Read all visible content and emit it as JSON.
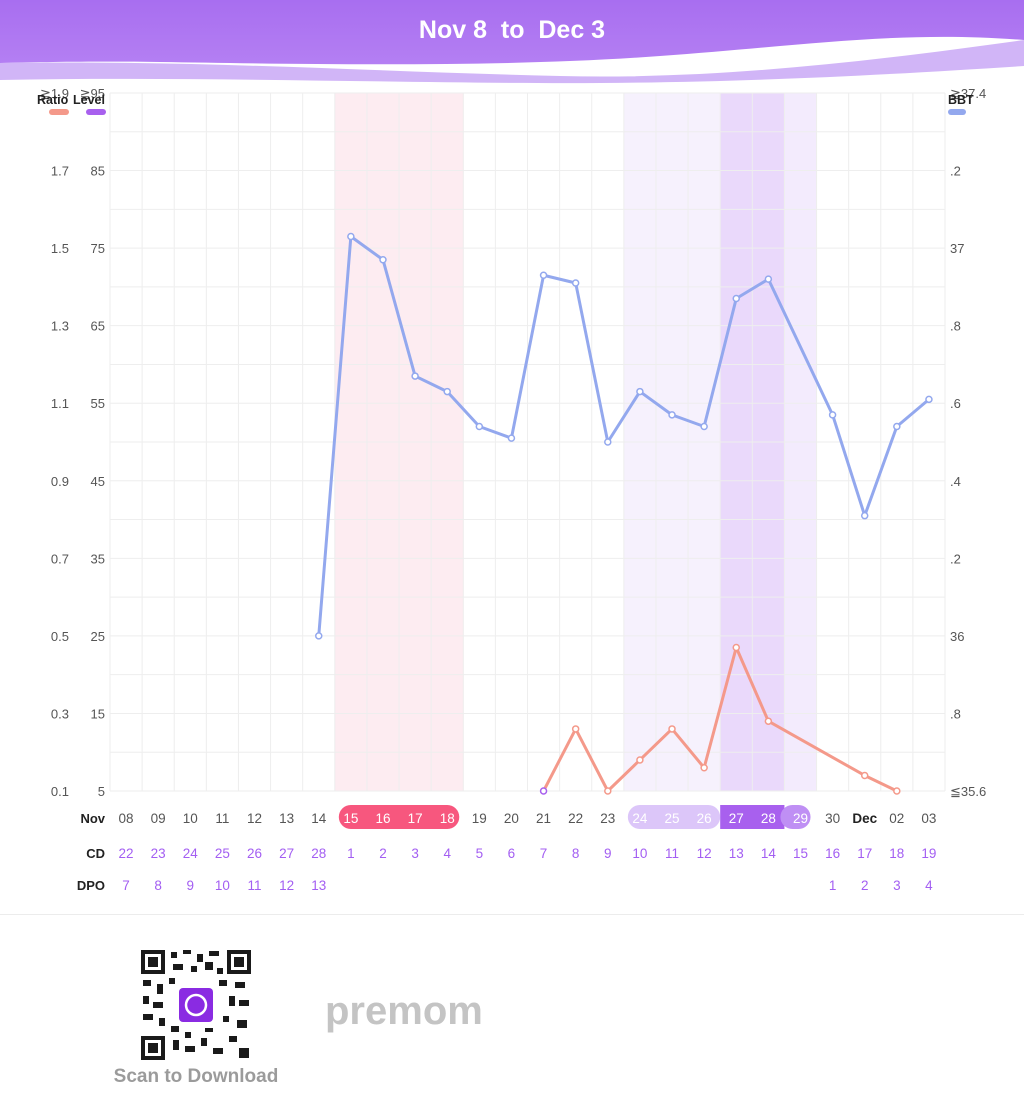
{
  "header": {
    "title": "Nov 8  to  Dec 3"
  },
  "footer": {
    "scan_label": "Scan to Download",
    "logo_text": "premom"
  },
  "colors": {
    "header_top": "#a86ef0",
    "bbt": "#93a8ee",
    "ratio": "#f4998a",
    "period": "#f7577e",
    "fertile_light": "#e3cef9",
    "fertile_dark": "#a860ee",
    "purple_text": "#a35ef2"
  },
  "chart_data": {
    "type": "line",
    "legend": {
      "ratio": "Ratio",
      "level": "Level",
      "bbt": "BBT"
    },
    "left_axis_ratio_ticks": [
      "≧1.9",
      "1.7",
      "1.5",
      "1.3",
      "1.1",
      "0.9",
      "0.7",
      "0.5",
      "0.3",
      "0.1"
    ],
    "left_axis_level_ticks": [
      "≧95",
      "85",
      "75",
      "65",
      "55",
      "45",
      "35",
      "25",
      "15",
      "5"
    ],
    "right_axis_bbt_ticks": [
      "≧37.4",
      ".2",
      "37",
      ".8",
      ".6",
      ".4",
      ".2",
      "36",
      ".8",
      "≦35.6"
    ],
    "ratio_range": [
      0.1,
      1.9
    ],
    "bbt_range": [
      35.6,
      37.4
    ],
    "row_labels": {
      "date": "Nov",
      "cd": "CD",
      "dpo": "DPO"
    },
    "dates": [
      "08",
      "09",
      "10",
      "11",
      "12",
      "13",
      "14",
      "15",
      "16",
      "17",
      "18",
      "19",
      "20",
      "21",
      "22",
      "23",
      "24",
      "25",
      "26",
      "27",
      "28",
      "29",
      "30",
      "Dec",
      "02",
      "03"
    ],
    "cd": [
      "22",
      "23",
      "24",
      "25",
      "26",
      "27",
      "28",
      "1",
      "2",
      "3",
      "4",
      "5",
      "6",
      "7",
      "8",
      "9",
      "10",
      "11",
      "12",
      "13",
      "14",
      "15",
      "16",
      "17",
      "18",
      "19"
    ],
    "dpo": [
      "7",
      "8",
      "9",
      "10",
      "11",
      "12",
      "13",
      "",
      "",
      "",
      "",
      "",
      "",
      "",
      "",
      "",
      "",
      "",
      "",
      "",
      "",
      "",
      "1",
      "2",
      "3",
      "4"
    ],
    "period_days": [
      7,
      8,
      9,
      10
    ],
    "fertile_low_days": [
      16,
      17,
      18
    ],
    "fertile_peak_days": [
      19,
      20
    ],
    "fertile_high_days": [
      21
    ],
    "series": [
      {
        "name": "BBT",
        "values": [
          null,
          null,
          null,
          null,
          null,
          null,
          36.0,
          37.03,
          36.97,
          36.67,
          36.63,
          36.54,
          36.51,
          36.93,
          36.91,
          36.5,
          36.63,
          36.57,
          36.54,
          36.87,
          36.92,
          null,
          36.57,
          36.31,
          36.54,
          36.61
        ]
      },
      {
        "name": "Ratio",
        "values": [
          null,
          null,
          null,
          null,
          null,
          null,
          null,
          null,
          null,
          null,
          null,
          null,
          null,
          0.1,
          0.26,
          0.1,
          0.18,
          0.26,
          0.16,
          0.47,
          0.28,
          null,
          null,
          0.14,
          0.1,
          null
        ]
      }
    ]
  }
}
